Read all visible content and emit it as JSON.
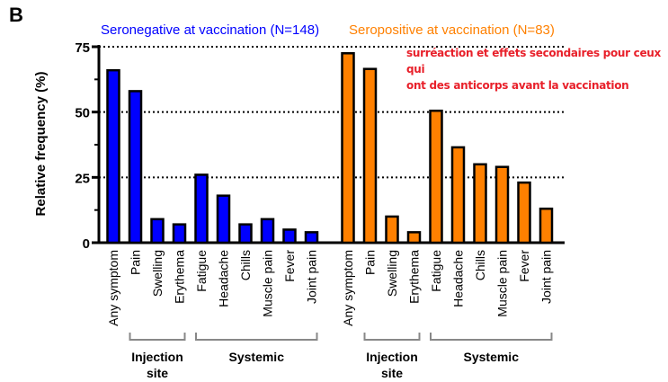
{
  "panel_label": "B",
  "annotation": [
    "surréaction et effets secondaires pour ceux qui",
    "ont des anticorps avant la vaccination"
  ],
  "chart_data": {
    "type": "bar",
    "ylabel": "Relative frequency (%)",
    "ylim": [
      0,
      75
    ],
    "yticks": [
      "0",
      "25",
      "50",
      "75"
    ],
    "grid": "dotted horizontal at 25, 50, 75",
    "categories": [
      "Any symptom",
      "Pain",
      "Swelling",
      "Erythema",
      "Fatigue",
      "Headache",
      "Chills",
      "Muscle pain",
      "Fever",
      "Joint pain"
    ],
    "category_groups": [
      {
        "label": "Injection site",
        "members": [
          "Pain",
          "Swelling",
          "Erythema"
        ]
      },
      {
        "label": "Systemic",
        "members": [
          "Fatigue",
          "Headache",
          "Chills",
          "Muscle pain",
          "Fever",
          "Joint pain"
        ]
      }
    ],
    "series": [
      {
        "name": "Seronegative at vaccination (N=148)",
        "color": "#0000ff",
        "values": [
          66,
          58,
          9,
          7,
          26,
          18,
          7,
          9,
          5,
          4
        ]
      },
      {
        "name": "Seropositive at vaccination (N=83)",
        "color": "#ff8000",
        "values": [
          72.5,
          66.5,
          10,
          4,
          50.5,
          36.5,
          30,
          29,
          23,
          13
        ]
      }
    ]
  }
}
